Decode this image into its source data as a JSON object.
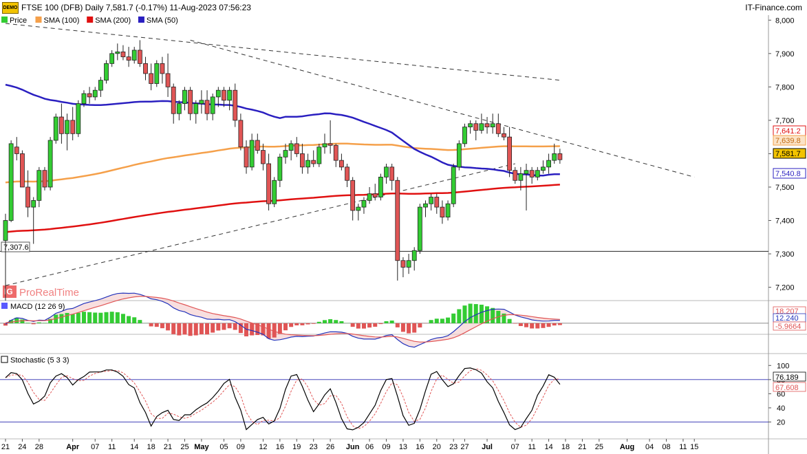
{
  "header": {
    "demo_badge": "DEMO",
    "title": "FTSE 100 (DFB) Daily 7,581.7 (-0.17%) 11-Aug-2023 07:56:23",
    "brand": "IT-Finance.com"
  },
  "watermark": "ProRealTime",
  "colors": {
    "up": "#33cc33",
    "down": "#e05555",
    "sma100": "#f5a04a",
    "sma200": "#e01010",
    "sma50": "#2a1fc0",
    "macd_line": "#2233bb",
    "signal_line": "#e05555",
    "stoch_k": "#000000",
    "stoch_d": "#e05555"
  },
  "chart_data": [
    {
      "type": "candlestick",
      "panel": "price",
      "legend": [
        {
          "label": "Price",
          "color": "#33cc33"
        },
        {
          "label": "SMA (100)",
          "color": "#f5a04a"
        },
        {
          "label": "SMA (200)",
          "color": "#e01010"
        },
        {
          "label": "SMA (50)",
          "color": "#2a1fc0"
        }
      ],
      "ylim": [
        7160,
        8015
      ],
      "yticks": [
        7200,
        7300,
        7400,
        7500,
        7600,
        7700,
        7800,
        7900,
        8000
      ],
      "ytick_labels": [
        "7,200",
        "7,300",
        "7,400",
        "7,500",
        "7,600",
        "7,700",
        "7,800",
        "7,900",
        "8,000"
      ],
      "x_labels": [
        "21",
        "24",
        "28",
        "Apr",
        "07",
        "11",
        "14",
        "18",
        "21",
        "25",
        "May",
        "05",
        "09",
        "12",
        "16",
        "19",
        "23",
        "26",
        "Jun",
        "06",
        "09",
        "13",
        "16",
        "20",
        "23",
        "27",
        "Jul",
        "07",
        "11",
        "14",
        "18",
        "21",
        "25",
        "Aug",
        "04",
        "08",
        "11",
        "15"
      ],
      "x_label_index": [
        0,
        3,
        6,
        12,
        16,
        19,
        23,
        26,
        29,
        32,
        35,
        39,
        42,
        46,
        49,
        52,
        55,
        58,
        62,
        65,
        68,
        71,
        74,
        77,
        80,
        82,
        86,
        91,
        94,
        97,
        100,
        103,
        106,
        111,
        115,
        118,
        121,
        123
      ],
      "price_tags": [
        {
          "value": 7641.2,
          "label": "7,641.2",
          "style": "sma200"
        },
        {
          "value": 7639.8,
          "label": "7,639.8",
          "style": "sma100"
        },
        {
          "value": 7581.7,
          "label": "7,581.7",
          "style": "last"
        },
        {
          "value": 7540.8,
          "label": "7,540.8",
          "style": "sma50"
        }
      ],
      "low_marker": {
        "value": 7307.6,
        "label": "7,307.6"
      },
      "candles": [
        [
          7340,
          7420,
          7305,
          7400
        ],
        [
          7400,
          7640,
          7395,
          7630
        ],
        [
          7620,
          7650,
          7580,
          7600
        ],
        [
          7600,
          7610,
          7500,
          7500
        ],
        [
          7500,
          7550,
          7410,
          7440
        ],
        [
          7440,
          7470,
          7330,
          7460
        ],
        [
          7460,
          7560,
          7440,
          7550
        ],
        [
          7550,
          7560,
          7490,
          7500
        ],
        [
          7500,
          7650,
          7490,
          7640
        ],
        [
          7640,
          7720,
          7630,
          7710
        ],
        [
          7710,
          7750,
          7630,
          7660
        ],
        [
          7660,
          7720,
          7610,
          7700
        ],
        [
          7700,
          7740,
          7640,
          7660
        ],
        [
          7660,
          7760,
          7650,
          7750
        ],
        [
          7750,
          7790,
          7740,
          7780
        ],
        [
          7780,
          7800,
          7750,
          7770
        ],
        [
          7770,
          7800,
          7760,
          7790
        ],
        [
          7790,
          7830,
          7770,
          7820
        ],
        [
          7820,
          7880,
          7810,
          7870
        ],
        [
          7870,
          7910,
          7860,
          7900
        ],
        [
          7900,
          7930,
          7880,
          7905
        ],
        [
          7905,
          7925,
          7880,
          7890
        ],
        [
          7890,
          7920,
          7860,
          7880
        ],
        [
          7880,
          7920,
          7870,
          7910
        ],
        [
          7910,
          7940,
          7860,
          7870
        ],
        [
          7870,
          7890,
          7820,
          7840
        ],
        [
          7840,
          7870,
          7790,
          7810
        ],
        [
          7810,
          7880,
          7800,
          7870
        ],
        [
          7870,
          7890,
          7810,
          7840
        ],
        [
          7840,
          7900,
          7770,
          7800
        ],
        [
          7800,
          7810,
          7690,
          7720
        ],
        [
          7720,
          7760,
          7700,
          7750
        ],
        [
          7750,
          7800,
          7730,
          7790
        ],
        [
          7790,
          7800,
          7700,
          7720
        ],
        [
          7720,
          7760,
          7690,
          7750
        ],
        [
          7750,
          7790,
          7720,
          7760
        ],
        [
          7760,
          7790,
          7700,
          7720
        ],
        [
          7720,
          7780,
          7700,
          7770
        ],
        [
          7770,
          7800,
          7740,
          7790
        ],
        [
          7790,
          7800,
          7740,
          7760
        ],
        [
          7760,
          7800,
          7730,
          7790
        ],
        [
          7790,
          7810,
          7680,
          7700
        ],
        [
          7700,
          7720,
          7610,
          7620
        ],
        [
          7620,
          7640,
          7540,
          7560
        ],
        [
          7560,
          7660,
          7550,
          7640
        ],
        [
          7640,
          7660,
          7600,
          7610
        ],
        [
          7610,
          7630,
          7550,
          7570
        ],
        [
          7570,
          7600,
          7430,
          7450
        ],
        [
          7450,
          7530,
          7440,
          7520
        ],
        [
          7520,
          7600,
          7500,
          7590
        ],
        [
          7590,
          7630,
          7570,
          7610
        ],
        [
          7610,
          7640,
          7580,
          7630
        ],
        [
          7630,
          7650,
          7590,
          7600
        ],
        [
          7600,
          7630,
          7540,
          7560
        ],
        [
          7560,
          7600,
          7540,
          7580
        ],
        [
          7580,
          7610,
          7560,
          7570
        ],
        [
          7570,
          7630,
          7560,
          7620
        ],
        [
          7620,
          7660,
          7600,
          7630
        ],
        [
          7630,
          7700,
          7600,
          7625
        ],
        [
          7625,
          7630,
          7560,
          7580
        ],
        [
          7580,
          7600,
          7550,
          7560
        ],
        [
          7560,
          7570,
          7500,
          7520
        ],
        [
          7520,
          7530,
          7400,
          7430
        ],
        [
          7430,
          7450,
          7400,
          7440
        ],
        [
          7440,
          7470,
          7420,
          7460
        ],
        [
          7460,
          7500,
          7450,
          7480
        ],
        [
          7480,
          7510,
          7460,
          7470
        ],
        [
          7470,
          7540,
          7460,
          7530
        ],
        [
          7530,
          7570,
          7510,
          7560
        ],
        [
          7560,
          7570,
          7490,
          7520
        ],
        [
          7520,
          7530,
          7220,
          7280
        ],
        [
          7280,
          7290,
          7230,
          7260
        ],
        [
          7260,
          7300,
          7240,
          7280
        ],
        [
          7280,
          7320,
          7250,
          7310
        ],
        [
          7310,
          7450,
          7300,
          7440
        ],
        [
          7440,
          7460,
          7410,
          7450
        ],
        [
          7450,
          7480,
          7430,
          7470
        ],
        [
          7470,
          7480,
          7420,
          7440
        ],
        [
          7440,
          7460,
          7390,
          7410
        ],
        [
          7410,
          7460,
          7400,
          7450
        ],
        [
          7450,
          7570,
          7440,
          7560
        ],
        [
          7560,
          7640,
          7550,
          7630
        ],
        [
          7630,
          7690,
          7620,
          7680
        ],
        [
          7680,
          7700,
          7660,
          7690
        ],
        [
          7690,
          7700,
          7640,
          7670
        ],
        [
          7670,
          7720,
          7660,
          7690
        ],
        [
          7690,
          7710,
          7660,
          7680
        ],
        [
          7680,
          7720,
          7660,
          7690
        ],
        [
          7690,
          7720,
          7650,
          7660
        ],
        [
          7660,
          7680,
          7640,
          7650
        ],
        [
          7650,
          7680,
          7530,
          7550
        ],
        [
          7550,
          7560,
          7510,
          7520
        ],
        [
          7520,
          7560,
          7490,
          7540
        ],
        [
          7540,
          7570,
          7430,
          7550
        ],
        [
          7550,
          7560,
          7510,
          7530
        ],
        [
          7530,
          7560,
          7520,
          7550
        ],
        [
          7550,
          7580,
          7540,
          7560
        ],
        [
          7560,
          7600,
          7540,
          7580
        ],
        [
          7580,
          7630,
          7570,
          7600
        ],
        [
          7600,
          7615,
          7570,
          7582
        ]
      ],
      "trendlines": [
        {
          "from": [
            0,
            7990
          ],
          "to": [
            99,
            7820
          ]
        },
        {
          "from": [
            33,
            7940
          ],
          "to": [
            123,
            7530
          ]
        },
        {
          "from": [
            0,
            7205
          ],
          "to": [
            91,
            7570
          ]
        }
      ],
      "horizontal_line": 7307.6
    },
    {
      "type": "bar+line",
      "panel": "macd",
      "title": "MACD (12 26 9)",
      "ylim": [
        -35,
        60
      ],
      "value_tags": [
        {
          "value": 18.207,
          "label": "18.207"
        },
        {
          "value": 12.24,
          "label": "12.240"
        },
        {
          "value": -5.9664,
          "label": "-5.9664"
        }
      ]
    },
    {
      "type": "line",
      "panel": "stochastic",
      "title": "Stochastic (5 3 3)",
      "ylim": [
        0,
        110
      ],
      "yticks": [
        20,
        40,
        60,
        80,
        100
      ],
      "ytick_labels": [
        "20",
        "40",
        "60",
        "80",
        "100"
      ],
      "levels": [
        20,
        80
      ],
      "value_tags": [
        {
          "value": 76.189,
          "label": "76.189"
        },
        {
          "value": 67.608,
          "label": "67.608"
        }
      ]
    }
  ]
}
